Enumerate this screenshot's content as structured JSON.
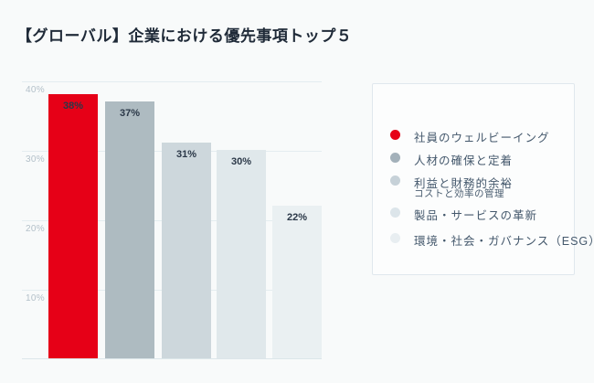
{
  "page": {
    "background": "#f8fafa"
  },
  "title": "【グローバル】企業における優先事項トップ５",
  "chart_data": {
    "type": "bar",
    "title": "【グローバル】企業における優先事項トップ５",
    "categories": [
      "社員のウェルビーイング",
      "人材の確保と定着",
      "利益と財務的余裕",
      "製品・サービスの革新",
      "環境・社会・ガバナンス（ESG）"
    ],
    "values": [
      38,
      37,
      31,
      30,
      22
    ],
    "value_labels": [
      "38%",
      "37%",
      "31%",
      "30%",
      "22%"
    ],
    "bar_colors": [
      "#e60017",
      "#aebbc1",
      "#cdd7dc",
      "#e0e8eb",
      "#eaf0f2"
    ],
    "xlabel": "",
    "ylabel": "",
    "ylim": [
      0,
      40
    ],
    "yticks": [
      {
        "value": 40,
        "label": "40%"
      },
      {
        "value": 30,
        "label": "30%"
      },
      {
        "value": 20,
        "label": "20%"
      },
      {
        "value": 10,
        "label": "10%"
      }
    ],
    "grid": true,
    "legend_position": "right"
  },
  "legend": {
    "items": [
      {
        "label": "社員のウェルビーイング",
        "sublabel": "",
        "color": "#e60017"
      },
      {
        "label": "人材の確保と定着",
        "sublabel": "",
        "color": "#a3b1ba"
      },
      {
        "label": "利益と財務的余裕",
        "sublabel": "コストと効率の管理",
        "color": "#c6d1d8"
      },
      {
        "label": "製品・サービスの革新",
        "sublabel": "",
        "color": "#dce5ea"
      },
      {
        "label": "環境・社会・ガバナンス（ESG）",
        "sublabel": "",
        "color": "#e8eef1"
      }
    ]
  }
}
